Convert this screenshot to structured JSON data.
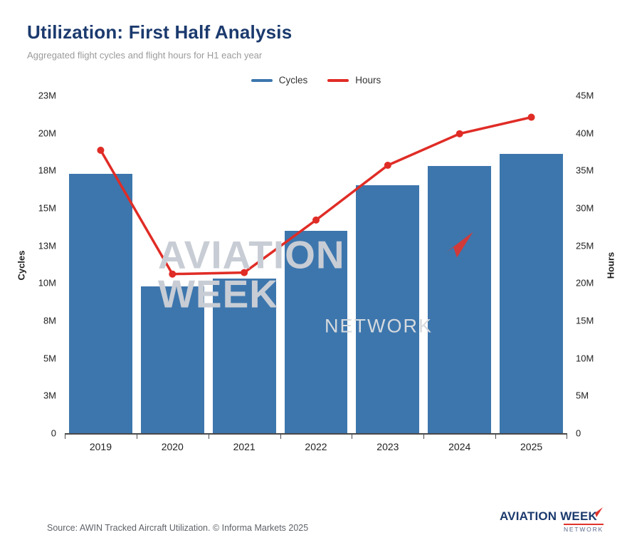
{
  "page": {
    "title": "Utilization: First Half Analysis",
    "subtitle": "Aggregated flight cycles and flight hours for H1 each year",
    "source": "Source: AWIN Tracked Aircraft Utilization. © Informa Markets 2025"
  },
  "colors": {
    "title": "#1b3a6e",
    "bar": "#3d76ad",
    "line": "#e02c26",
    "watermark": "#c8cdd5"
  },
  "legend": [
    {
      "label": "Cycles",
      "color": "#3d76ad"
    },
    {
      "label": "Hours",
      "color": "#e02c26"
    }
  ],
  "watermark": {
    "line1": "AVIATION WEEK",
    "line2": "NETWORK"
  },
  "brand": {
    "line1": "AVIATION WEEK",
    "line2": "NETWORK"
  },
  "chart_data": {
    "type": "bar+line",
    "title": "Utilization: First Half Analysis",
    "subtitle": "Aggregated flight cycles and flight hours for H1 each year",
    "categories": [
      "2019",
      "2020",
      "2021",
      "2022",
      "2023",
      "2024",
      "2025"
    ],
    "series": [
      {
        "name": "Cycles",
        "type": "bar",
        "axis": "left",
        "unit": "M",
        "values": [
          17.3,
          9.8,
          10.3,
          13.5,
          16.5,
          17.8,
          18.6
        ]
      },
      {
        "name": "Hours",
        "type": "line",
        "axis": "right",
        "unit": "M",
        "values": [
          37.7,
          21.2,
          21.4,
          28.4,
          35.7,
          39.9,
          42.1
        ]
      }
    ],
    "left_axis": {
      "label": "Cycles",
      "max": 22.5,
      "ticks": [
        "23M",
        "20M",
        "18M",
        "15M",
        "13M",
        "10M",
        "8M",
        "5M",
        "3M",
        "0"
      ]
    },
    "right_axis": {
      "label": "Hours",
      "max": 45,
      "ticks": [
        "45M",
        "40M",
        "35M",
        "30M",
        "25M",
        "20M",
        "15M",
        "10M",
        "5M",
        "0"
      ]
    },
    "legend_position": "top",
    "grid": false
  }
}
